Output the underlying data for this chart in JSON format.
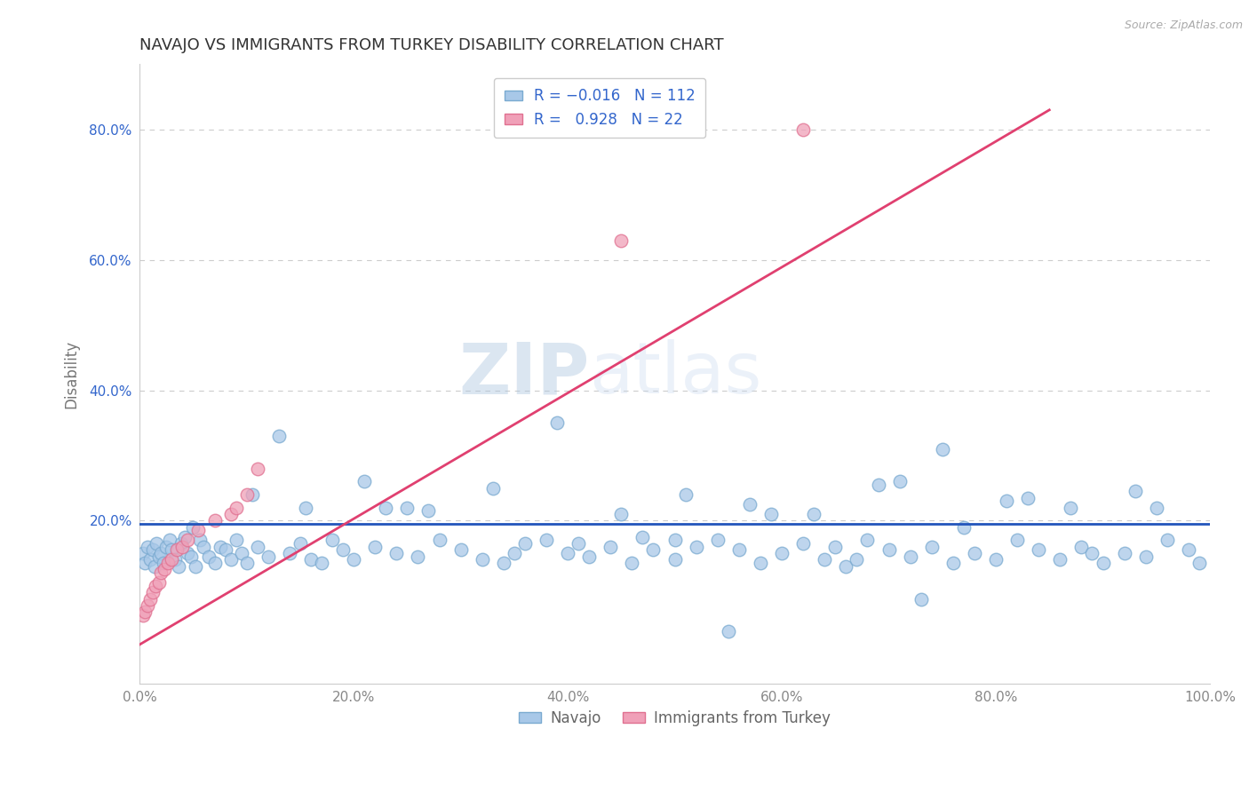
{
  "title": "NAVAJO VS IMMIGRANTS FROM TURKEY DISABILITY CORRELATION CHART",
  "source_text": "Source: ZipAtlas.com",
  "ylabel": "Disability",
  "navajo_R": -0.016,
  "navajo_N": 112,
  "turkey_R": 0.928,
  "turkey_N": 22,
  "navajo_color": "#a8c8e8",
  "navajo_edge_color": "#7aaad0",
  "turkey_color": "#f0a0b8",
  "turkey_edge_color": "#e07090",
  "navajo_line_color": "#2255bb",
  "turkey_line_color": "#e04070",
  "background_color": "#ffffff",
  "grid_color": "#cccccc",
  "title_color": "#333333",
  "tick_color_y": "#3366cc",
  "tick_color_x": "#888888",
  "legend_text_color": "#3366cc",
  "watermark_color": "#c8d8ee",
  "navajo_x": [
    0.3,
    0.5,
    0.7,
    1.0,
    1.2,
    1.4,
    1.6,
    1.8,
    2.0,
    2.2,
    2.5,
    2.8,
    3.0,
    3.3,
    3.6,
    3.9,
    4.2,
    4.5,
    4.8,
    5.2,
    5.6,
    6.0,
    6.5,
    7.0,
    7.5,
    8.0,
    8.5,
    9.0,
    9.5,
    10.0,
    11.0,
    12.0,
    13.0,
    14.0,
    15.0,
    16.0,
    17.0,
    18.0,
    19.0,
    20.0,
    22.0,
    24.0,
    26.0,
    28.0,
    30.0,
    32.0,
    34.0,
    36.0,
    38.0,
    40.0,
    42.0,
    44.0,
    46.0,
    48.0,
    50.0,
    52.0,
    54.0,
    56.0,
    58.0,
    60.0,
    62.0,
    64.0,
    66.0,
    68.0,
    70.0,
    72.0,
    74.0,
    76.0,
    78.0,
    80.0,
    82.0,
    84.0,
    86.0,
    88.0,
    90.0,
    92.0,
    94.0,
    96.0,
    98.0,
    99.0,
    15.5,
    21.0,
    27.0,
    33.0,
    39.0,
    45.0,
    51.0,
    57.0,
    63.0,
    69.0,
    75.0,
    81.0,
    87.0,
    93.0,
    10.5,
    23.0,
    35.0,
    47.0,
    59.0,
    71.0,
    83.0,
    95.0,
    5.0,
    25.0,
    50.0,
    65.0,
    77.0,
    89.0,
    41.0,
    55.0,
    67.0,
    73.0
  ],
  "navajo_y": [
    15.0,
    13.5,
    16.0,
    14.0,
    15.5,
    13.0,
    16.5,
    14.5,
    15.0,
    13.5,
    16.0,
    17.0,
    15.5,
    14.0,
    13.0,
    16.5,
    17.5,
    15.0,
    14.5,
    13.0,
    17.0,
    16.0,
    14.5,
    13.5,
    16.0,
    15.5,
    14.0,
    17.0,
    15.0,
    13.5,
    16.0,
    14.5,
    33.0,
    15.0,
    16.5,
    14.0,
    13.5,
    17.0,
    15.5,
    14.0,
    16.0,
    15.0,
    14.5,
    17.0,
    15.5,
    14.0,
    13.5,
    16.5,
    17.0,
    15.0,
    14.5,
    16.0,
    13.5,
    15.5,
    14.0,
    16.0,
    17.0,
    15.5,
    13.5,
    15.0,
    16.5,
    14.0,
    13.0,
    17.0,
    15.5,
    14.5,
    16.0,
    13.5,
    15.0,
    14.0,
    17.0,
    15.5,
    14.0,
    16.0,
    13.5,
    15.0,
    14.5,
    17.0,
    15.5,
    13.5,
    22.0,
    26.0,
    21.5,
    25.0,
    35.0,
    21.0,
    24.0,
    22.5,
    21.0,
    25.5,
    31.0,
    23.0,
    22.0,
    24.5,
    24.0,
    22.0,
    15.0,
    17.5,
    21.0,
    26.0,
    23.5,
    22.0,
    19.0,
    22.0,
    17.0,
    16.0,
    19.0,
    15.0,
    16.5,
    3.0,
    14.0,
    8.0
  ],
  "turkey_x": [
    0.3,
    0.5,
    0.7,
    1.0,
    1.2,
    1.5,
    1.8,
    2.0,
    2.3,
    2.6,
    3.0,
    3.5,
    4.0,
    4.5,
    5.5,
    7.0,
    8.5,
    9.0,
    10.0,
    11.0,
    45.0,
    62.0
  ],
  "turkey_y": [
    5.5,
    6.0,
    7.0,
    8.0,
    9.0,
    10.0,
    10.5,
    12.0,
    12.5,
    13.5,
    14.0,
    15.5,
    16.0,
    17.0,
    18.5,
    20.0,
    21.0,
    22.0,
    24.0,
    28.0,
    63.0,
    80.0
  ],
  "turkey_line_x0": 0.0,
  "turkey_line_x1": 85.0,
  "turkey_line_y0": 1.0,
  "turkey_line_y1": 83.0,
  "navajo_line_y": 19.5,
  "xlim": [
    0.0,
    100.0
  ],
  "ylim": [
    -5.0,
    90.0
  ],
  "xticks": [
    0,
    20,
    40,
    60,
    80,
    100
  ],
  "yticks": [
    20,
    40,
    60,
    80
  ],
  "xticklabels": [
    "0.0%",
    "20.0%",
    "40.0%",
    "60.0%",
    "80.0%",
    "100.0%"
  ],
  "yticklabels": [
    "20.0%",
    "40.0%",
    "60.0%",
    "80.0%"
  ]
}
